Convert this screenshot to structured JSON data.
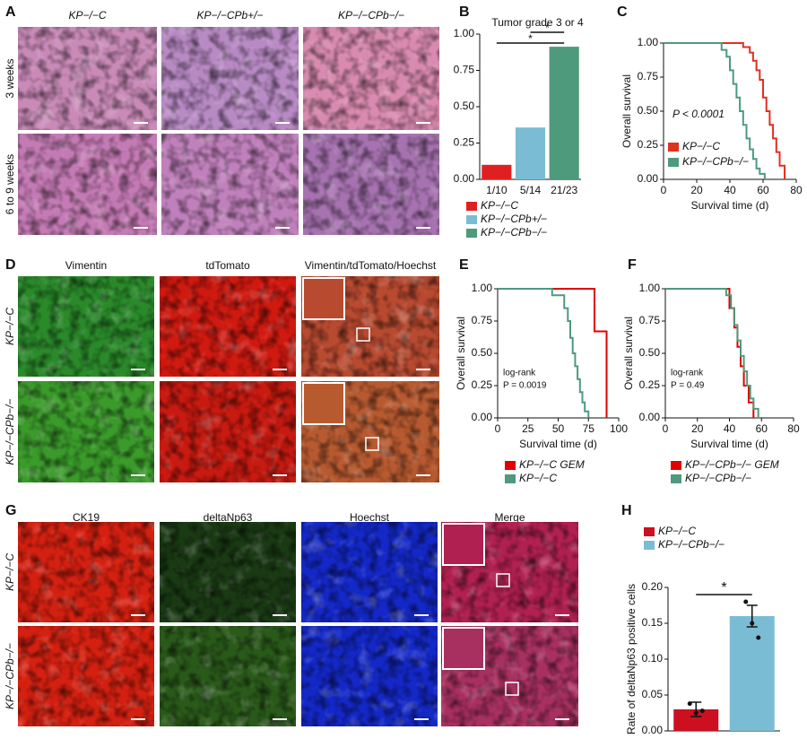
{
  "figure": {
    "A": {
      "letter": "A",
      "columns": [
        "KP−/−C",
        "KP−/−CPb+/−",
        "KP−/−CPb−/−"
      ],
      "rows": [
        "3 weeks",
        "6 to 9 weeks"
      ]
    },
    "B": {
      "letter": "B"
    },
    "C": {
      "letter": "C"
    },
    "D": {
      "letter": "D",
      "columns": [
        "Vimentin",
        "tdTomato",
        "Vimentin/tdTomato/Hoechst"
      ],
      "rows": [
        "KP−/−C",
        "KP−/−CPb−/−"
      ]
    },
    "E": {
      "letter": "E"
    },
    "F": {
      "letter": "F"
    },
    "G": {
      "letter": "G",
      "columns": [
        "CK19",
        "deltaNp63",
        "Hoechst",
        "Merge"
      ],
      "rows": [
        "KP−/−C",
        "KP−/−CPb−/−"
      ]
    },
    "H": {
      "letter": "H"
    }
  },
  "chart_data": [
    {
      "type": "bar",
      "title": "Tumor grade 3 or 4",
      "categories": [
        "1/10",
        "5/14",
        "21/23"
      ],
      "values": [
        0.1,
        0.357,
        0.913
      ],
      "colors": [
        "#e02020",
        "#7bbcd5",
        "#4e9a7c"
      ],
      "legend": [
        "KP−/−C",
        "KP−/−CPb+/−",
        "KP−/−CPb−/−"
      ],
      "ylim": [
        0,
        1
      ],
      "yticks": [
        {
          "value": 0,
          "label": "0.00"
        },
        {
          "value": 0.25,
          "label": "0.25"
        },
        {
          "value": 0.5,
          "label": "0.50"
        },
        {
          "value": 0.75,
          "label": "0.75"
        },
        {
          "value": 1,
          "label": "1.00"
        }
      ],
      "annotations": [
        "*",
        "*"
      ]
    },
    {
      "type": "step",
      "xlabel": "Survival time (d)",
      "ylabel": "Overall survival",
      "annotation": "P < 0.0001",
      "xlim": [
        0,
        80
      ],
      "xticks": [
        0,
        20,
        40,
        60,
        80
      ],
      "ylim": [
        0,
        1
      ],
      "yticks": [
        {
          "value": 0,
          "label": "0.00"
        },
        {
          "value": 0.25,
          "label": "0.25"
        },
        {
          "value": 0.5,
          "label": "0.50"
        },
        {
          "value": 0.75,
          "label": "0.75"
        },
        {
          "value": 1,
          "label": "1.00"
        }
      ],
      "series": [
        {
          "name": "KP−/−C",
          "color": "#e03020",
          "x": [
            0,
            48,
            52,
            54,
            56,
            58,
            60,
            62,
            64,
            66,
            68,
            70,
            73
          ],
          "values": [
            1,
            0.97,
            0.93,
            0.87,
            0.8,
            0.73,
            0.6,
            0.5,
            0.4,
            0.3,
            0.2,
            0.1,
            0
          ]
        },
        {
          "name": "KP−/−CPb−/−",
          "color": "#4e9a7c",
          "x": [
            0,
            35,
            38,
            40,
            42,
            44,
            46,
            48,
            50,
            52,
            54,
            56,
            58,
            61
          ],
          "values": [
            1,
            0.95,
            0.9,
            0.8,
            0.7,
            0.6,
            0.5,
            0.4,
            0.3,
            0.22,
            0.15,
            0.08,
            0.04,
            0
          ]
        }
      ]
    },
    {
      "type": "step",
      "xlabel": "Survival time (d)",
      "ylabel": "Overall survival",
      "annotation": [
        "log-rank",
        "P = 0.0019"
      ],
      "xlim": [
        0,
        100
      ],
      "xticks": [
        0,
        25,
        50,
        75,
        100
      ],
      "ylim": [
        0,
        1
      ],
      "yticks": [
        {
          "value": 0,
          "label": "0.00"
        },
        {
          "value": 0.25,
          "label": "0.25"
        },
        {
          "value": 0.5,
          "label": "0.50"
        },
        {
          "value": 0.75,
          "label": "0.75"
        },
        {
          "value": 1,
          "label": "1.00"
        }
      ],
      "series": [
        {
          "name": "KP−/−C GEM",
          "color": "#e00000",
          "x": [
            0,
            80,
            90
          ],
          "values": [
            1,
            0.67,
            0
          ]
        },
        {
          "name": "KP−/−C",
          "color": "#4e9a7c",
          "x": [
            0,
            45,
            55,
            58,
            60,
            62,
            64,
            66,
            68,
            70,
            72,
            75
          ],
          "values": [
            1,
            0.95,
            0.85,
            0.75,
            0.62,
            0.5,
            0.4,
            0.3,
            0.2,
            0.12,
            0.05,
            0
          ]
        }
      ]
    },
    {
      "type": "step",
      "xlabel": "Survival time (d)",
      "ylabel": "Overall survival",
      "annotation": [
        "log-rank",
        "P = 0.49"
      ],
      "xlim": [
        0,
        80
      ],
      "xticks": [
        0,
        20,
        40,
        60,
        80
      ],
      "ylim": [
        0,
        1
      ],
      "yticks": [
        {
          "value": 0,
          "label": "0.00"
        },
        {
          "value": 0.25,
          "label": "0.25"
        },
        {
          "value": 0.5,
          "label": "0.50"
        },
        {
          "value": 0.75,
          "label": "0.75"
        },
        {
          "value": 1,
          "label": "1.00"
        }
      ],
      "series": [
        {
          "name": "KP−/−CPb−/− GEM",
          "color": "#e00000",
          "x": [
            0,
            40,
            43,
            45,
            47,
            49,
            52,
            55
          ],
          "values": [
            1,
            0.85,
            0.7,
            0.55,
            0.4,
            0.25,
            0.12,
            0
          ]
        },
        {
          "name": "KP−/−CPb−/−",
          "color": "#4e9a7c",
          "x": [
            0,
            38,
            41,
            43,
            45,
            47,
            49,
            51,
            53,
            55,
            58
          ],
          "values": [
            1,
            0.95,
            0.85,
            0.72,
            0.6,
            0.48,
            0.36,
            0.25,
            0.15,
            0.07,
            0
          ]
        }
      ]
    },
    {
      "type": "errbar",
      "ylabel": "Rate of deltaNp63 positive cells",
      "annotation": "*",
      "ylim": [
        0,
        0.2
      ],
      "yticks": [
        {
          "value": 0,
          "label": "0.00"
        },
        0.05,
        {
          "value": 0.1,
          "label": "0.10"
        },
        0.15,
        {
          "value": 0.2,
          "label": "0.20"
        }
      ],
      "series": [
        {
          "name": "KP−/−C",
          "color": "#cc1020",
          "values": [
            0.03
          ],
          "errors": [
            0.01
          ],
          "points": [
            0.038,
            0.025,
            0.028
          ]
        },
        {
          "name": "KP−/−CPb−/−",
          "color": "#7bbcd5",
          "values": [
            0.16
          ],
          "errors": [
            0.015
          ],
          "points": [
            0.18,
            0.15,
            0.13
          ]
        }
      ]
    }
  ]
}
